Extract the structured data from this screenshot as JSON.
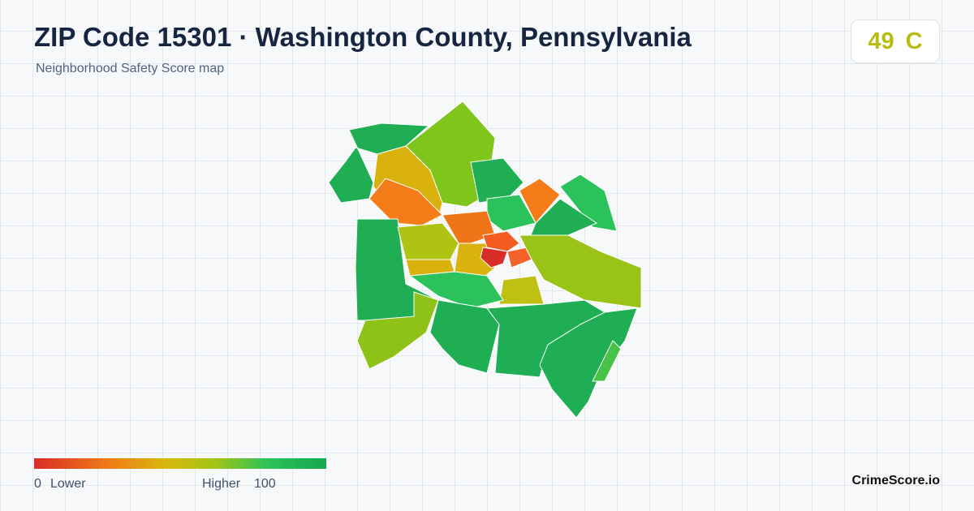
{
  "header": {
    "title": "ZIP Code 15301 · Washington County, Pennsylvania",
    "subtitle": "Neighborhood Safety Score map"
  },
  "score": {
    "value": "49",
    "grade": "C"
  },
  "legend": {
    "min": "0",
    "min_label": "Lower",
    "max_label": "Higher",
    "max": "100"
  },
  "brand": "CrimeScore.io"
}
